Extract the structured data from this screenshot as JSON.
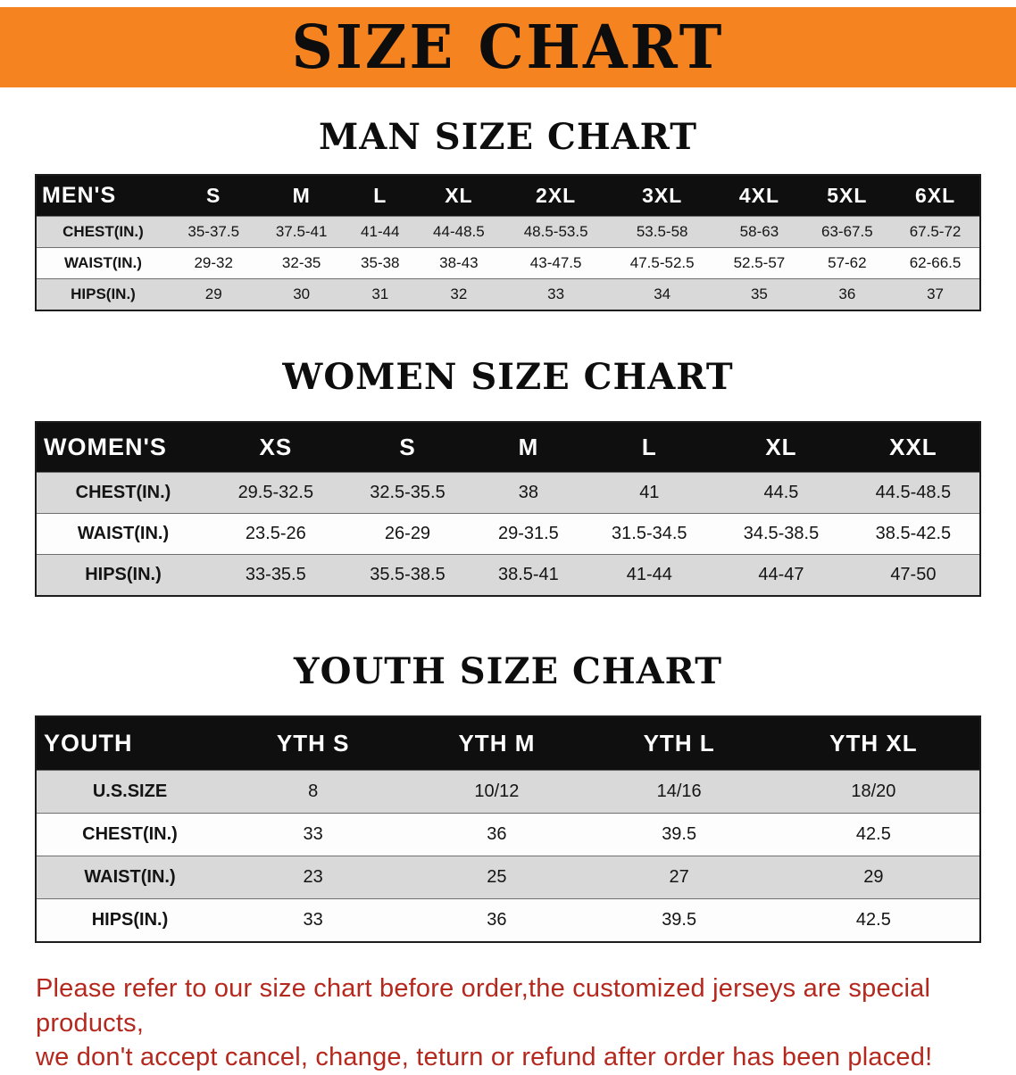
{
  "banner": {
    "title": "SIZE CHART"
  },
  "colors": {
    "banner_background": "#f5831f",
    "header_row_background": "#0f0f0f",
    "header_row_text": "#ffffff",
    "stripe_row_background": "#d9d9d9",
    "note_text": "#b5281e"
  },
  "chart_data": [
    {
      "type": "table",
      "id": "men",
      "title": "MAN SIZE CHART",
      "header": [
        "MEN'S",
        "S",
        "M",
        "L",
        "XL",
        "2XL",
        "3XL",
        "4XL",
        "5XL",
        "6XL"
      ],
      "rows": [
        [
          "CHEST(IN.)",
          "35-37.5",
          "37.5-41",
          "41-44",
          "44-48.5",
          "48.5-53.5",
          "53.5-58",
          "58-63",
          "63-67.5",
          "67.5-72"
        ],
        [
          "WAIST(IN.)",
          "29-32",
          "32-35",
          "35-38",
          "38-43",
          "43-47.5",
          "47.5-52.5",
          "52.5-57",
          "57-62",
          "62-66.5"
        ],
        [
          "HIPS(IN.)",
          "29",
          "30",
          "31",
          "32",
          "33",
          "34",
          "35",
          "36",
          "37"
        ]
      ]
    },
    {
      "type": "table",
      "id": "women",
      "title": "WOMEN SIZE CHART",
      "header": [
        "WOMEN'S",
        "XS",
        "S",
        "M",
        "L",
        "XL",
        "XXL"
      ],
      "rows": [
        [
          "CHEST(IN.)",
          "29.5-32.5",
          "32.5-35.5",
          "38",
          "41",
          "44.5",
          "44.5-48.5"
        ],
        [
          "WAIST(IN.)",
          "23.5-26",
          "26-29",
          "29-31.5",
          "31.5-34.5",
          "34.5-38.5",
          "38.5-42.5"
        ],
        [
          "HIPS(IN.)",
          "33-35.5",
          "35.5-38.5",
          "38.5-41",
          "41-44",
          "44-47",
          "47-50"
        ]
      ]
    },
    {
      "type": "table",
      "id": "youth",
      "title": "YOUTH SIZE CHART",
      "header": [
        "YOUTH",
        "YTH S",
        "YTH M",
        "YTH L",
        "YTH XL"
      ],
      "rows": [
        [
          "U.S.SIZE",
          "8",
          "10/12",
          "14/16",
          "18/20"
        ],
        [
          "CHEST(IN.)",
          "33",
          "36",
          "39.5",
          "42.5"
        ],
        [
          "WAIST(IN.)",
          "23",
          "25",
          "27",
          "29"
        ],
        [
          "HIPS(IN.)",
          "33",
          "36",
          "39.5",
          "42.5"
        ]
      ]
    }
  ],
  "footer_note": {
    "lines": [
      "Please refer to our size chart before order,the customized jerseys are special products,",
      "we don't accept cancel, change, teturn or refund after order has been placed!"
    ]
  }
}
